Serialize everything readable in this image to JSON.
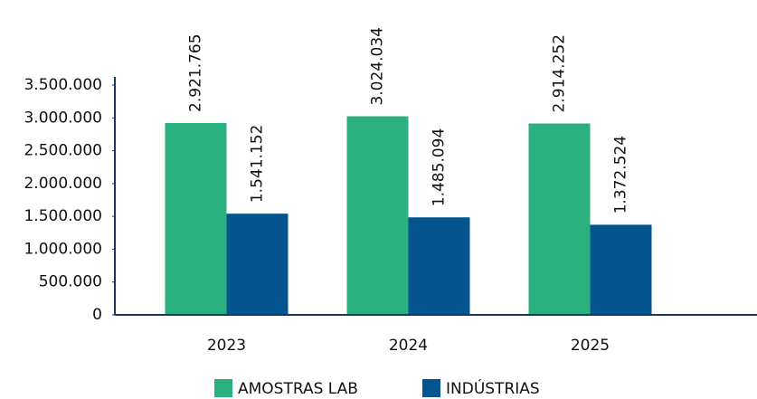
{
  "chart_data": {
    "type": "bar",
    "categories": [
      "2023",
      "2024",
      "2025"
    ],
    "series": [
      {
        "name": "AMOSTRAS LAB",
        "color": "#2bb07f",
        "values": [
          2921765,
          3024034,
          2914252
        ],
        "value_labels": [
          "2.921.765",
          "3.024.034",
          "2.914.252"
        ]
      },
      {
        "name": "INDÚSTRIAS",
        "color": "#04548f",
        "values": [
          1541152,
          1485094,
          1372524
        ],
        "value_labels": [
          "1.541.152",
          "1.485.094",
          "1.372.524"
        ]
      }
    ],
    "ylim": [
      0,
      3500000
    ],
    "yticks": [
      0,
      {
        "value": 500000,
        "label": "500.000"
      },
      {
        "value": 1000000,
        "label": "1.000.000"
      },
      {
        "value": 1500000,
        "label": "1.500.000"
      },
      {
        "value": 2000000,
        "label": "2.000.000"
      },
      {
        "value": 2500000,
        "label": "2.500.000"
      },
      {
        "value": 3000000,
        "label": "3.000.000"
      },
      {
        "value": 3500000,
        "label": "3.500.000"
      }
    ],
    "grid": false,
    "legend": "bottom"
  }
}
